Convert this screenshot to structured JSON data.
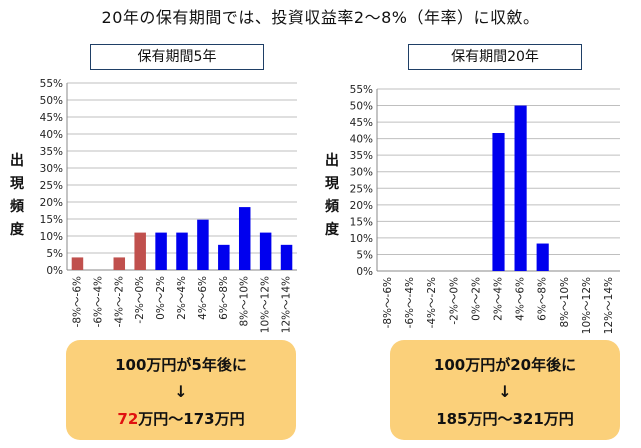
{
  "title": "20年の保有期間では、投資収益率2～8%（年率）に収斂。",
  "ylabel": "出現頻度",
  "colors": {
    "loss": "#c0504d",
    "gain": "#0000ee",
    "box": "#fbd07a",
    "highlight": "#e01010"
  },
  "chart_data": [
    {
      "type": "bar",
      "title": "保有期間5年",
      "ylabel": "出現頻度",
      "categories": [
        "-8%～-6%",
        "-6%～-4%",
        "-4%～-2%",
        "-2%～0%",
        "0%～2%",
        "2%～4%",
        "4%～6%",
        "6%～8%",
        "8%～10%",
        "10%～12%",
        "12%～14%"
      ],
      "values": [
        3.7,
        0,
        3.7,
        11,
        11,
        11,
        14.8,
        7.4,
        18.5,
        11,
        7.4
      ],
      "ylim": [
        0,
        55
      ],
      "yticks": [
        "0%",
        "5%",
        "10%",
        "15%",
        "20%",
        "25%",
        "30%",
        "35%",
        "40%",
        "45%",
        "50%",
        "55%"
      ],
      "grid": true
    },
    {
      "type": "bar",
      "title": "保有期間20年",
      "ylabel": "出現頻度",
      "categories": [
        "-8%～-6%",
        "-6%～-4%",
        "-4%～-2%",
        "-2%～0%",
        "0%～2%",
        "2%～4%",
        "4%～6%",
        "6%～8%",
        "8%～10%",
        "10%～12%",
        "12%～14%"
      ],
      "values": [
        0,
        0,
        0,
        0,
        0,
        41.7,
        50,
        8.3,
        0,
        0,
        0
      ],
      "ylim": [
        0,
        55
      ],
      "yticks": [
        "0%",
        "5%",
        "10%",
        "15%",
        "20%",
        "25%",
        "30%",
        "35%",
        "40%",
        "45%",
        "50%",
        "55%"
      ],
      "grid": true
    }
  ],
  "box1": {
    "line1": "100万円が5年後に",
    "arrow": "↓",
    "low": "72",
    "rest": "万円～173万円"
  },
  "box2": {
    "line1": "100万円が20年後に",
    "arrow": "↓",
    "line3": "185万円～321万円"
  }
}
